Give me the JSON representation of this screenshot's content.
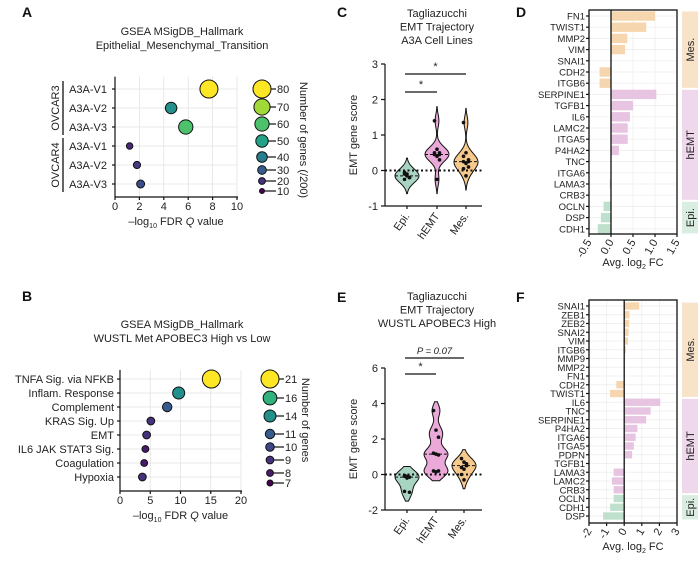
{
  "chart_data": [
    {
      "panel": "A",
      "type": "scatter",
      "title": [
        "GSEA MSigDB_Hallmark",
        "Epithelial_Mesenchymal_Transition"
      ],
      "xlabel": [
        "–log",
        "10",
        " FDR ",
        "Q",
        " value"
      ],
      "xlim": [
        0,
        10
      ],
      "xticks": [
        "0",
        "2",
        "4",
        "6",
        "8",
        "10"
      ],
      "grid": true,
      "groups": [
        {
          "name": "OVCAR3",
          "rows": [
            0,
            1,
            2
          ]
        },
        {
          "name": "OVCAR4",
          "rows": [
            3,
            4,
            5
          ]
        }
      ],
      "rows": [
        {
          "label": "A3A-V1",
          "color": "#5aa95a",
          "x": 7.7,
          "n": 80
        },
        {
          "label": "A3A-V2",
          "color": "#3d4f9b",
          "x": 4.6,
          "n": 45
        },
        {
          "label": "A3A-V3",
          "color": "#7b4a9e",
          "x": 5.8,
          "n": 60
        },
        {
          "label": "A3A-V1",
          "color": "#5aa95a",
          "x": 1.2,
          "n": 18
        },
        {
          "label": "A3A-V2",
          "color": "#3d4f9b",
          "x": 1.8,
          "n": 22
        },
        {
          "label": "A3A-V3",
          "color": "#7b4a9e",
          "x": 2.1,
          "n": 26
        }
      ],
      "legend": {
        "title": "Number of genes (/200)",
        "values": [
          "80",
          "70",
          "60",
          "50",
          "40",
          "30",
          "20",
          "10"
        ],
        "placement": "right"
      }
    },
    {
      "panel": "B",
      "type": "scatter",
      "title": [
        "GSEA MSigDB_Hallmark",
        "WUSTL Met APOBEC3 High vs Low"
      ],
      "xlabel": [
        "–log",
        "10",
        " FDR ",
        "Q",
        " value"
      ],
      "xlim": [
        0,
        20
      ],
      "xticks": [
        "0",
        "5",
        "10",
        "15",
        "20"
      ],
      "grid": true,
      "rows": [
        {
          "label": "TNFA Sig. via NFKB",
          "x": 15.1,
          "n": 21
        },
        {
          "label": "Inflam. Response",
          "x": 9.7,
          "n": 14
        },
        {
          "label": "Complement",
          "x": 7.8,
          "n": 11
        },
        {
          "label": "KRAS Sig. Up",
          "x": 5.1,
          "n": 9
        },
        {
          "label": "EMT",
          "x": 4.4,
          "n": 9
        },
        {
          "label": "IL6 JAK STAT3 Sig.",
          "x": 4.2,
          "n": 8
        },
        {
          "label": "Coagulation",
          "x": 4.0,
          "n": 8
        },
        {
          "label": "Hypoxia",
          "x": 3.7,
          "n": 9
        }
      ],
      "legend": {
        "title": "Number of genes",
        "values": [
          "21",
          "16",
          "14",
          "11",
          "10",
          "9",
          "8",
          "7"
        ],
        "placement": "right"
      }
    },
    {
      "panel": "C",
      "type": "violin",
      "title": [
        "Tagliazucchi",
        "EMT Trajectory",
        "A3A Cell Lines"
      ],
      "ylabel": "EMT gene score",
      "ylim": [
        -1,
        3
      ],
      "yticks": [
        "-1",
        "0",
        "1",
        "2",
        "3"
      ],
      "categories": [
        {
          "name": "Epi.",
          "color": "#a8d5c2",
          "points": [
            -0.1,
            -0.15,
            -0.2,
            -0.25,
            -0.1,
            -0.2,
            -0.05
          ]
        },
        {
          "name": "hEMT",
          "color": "#eaa9d9",
          "points": [
            1.4,
            0.6,
            0.5,
            0.45,
            0.4,
            0.45,
            0.5,
            -0.25,
            0.3
          ]
        },
        {
          "name": "Mes.",
          "color": "#f6c98c",
          "points": [
            1.35,
            0.5,
            0.3,
            0.25,
            0.2,
            0.1,
            0.05,
            -0.15,
            0.25,
            0.4
          ]
        }
      ],
      "reference_line": 0,
      "significance": [
        {
          "from": 0,
          "to": 1,
          "label": "*"
        },
        {
          "from": 0,
          "to": 2,
          "label": "*"
        }
      ]
    },
    {
      "panel": "D",
      "type": "bar",
      "xlabel": [
        "Avg. log",
        "2",
        " FC"
      ],
      "xlim": [
        -0.5,
        1.5
      ],
      "xticks": [
        "-0.5",
        "0.0",
        "0.5",
        "1.0",
        "1.5"
      ],
      "groups": [
        {
          "name": "Mes.",
          "rows": 7,
          "bar": "#f5d6ae",
          "strip": "#f8e3c9"
        },
        {
          "name": "hEMT",
          "rows": 10,
          "bar": "#e7c4e1",
          "strip": "#efd8ec"
        },
        {
          "name": "Epi.",
          "rows": 3,
          "bar": "#bfe0cc",
          "strip": "#d9ede1"
        }
      ],
      "genes": [
        "FN1",
        "TWIST1",
        "MMP2",
        "VIM",
        "SNAI1",
        "CDH2",
        "ITGB6",
        "SERPINE1",
        "TGFB1",
        "IL6",
        "LAMC2",
        "ITGA5",
        "P4HA2",
        "TNC",
        "ITGA6",
        "LAMA3",
        "CRB3",
        "OCLN",
        "DSP",
        "CDH1"
      ],
      "values": [
        1.0,
        0.8,
        0.37,
        0.32,
        0,
        -0.26,
        -0.26,
        1.03,
        0.5,
        0.43,
        0.38,
        0.38,
        0.18,
        0,
        0,
        -0.03,
        0,
        -0.17,
        -0.23,
        -0.3
      ]
    },
    {
      "panel": "E",
      "type": "violin",
      "title": [
        "Tagliazucchi",
        "EMT Trajectory",
        "WUSTL APOBEC3 High"
      ],
      "ylabel": "EMT gene score",
      "ylim": [
        -2,
        6
      ],
      "yticks": [
        "-2",
        "0",
        "2",
        "4",
        "6"
      ],
      "categories": [
        {
          "name": "Epi.",
          "color": "#a8d5c2",
          "points": [
            -0.1,
            -0.2,
            -0.15,
            -0.05,
            -0.1,
            -1.0,
            -0.95
          ]
        },
        {
          "name": "hEMT",
          "color": "#eaa9d9",
          "points": [
            3.6,
            2.5,
            2.1,
            1.2,
            1.15,
            1.1,
            0.2,
            0.15,
            0.2
          ]
        },
        {
          "name": "Mes.",
          "color": "#f6c98c",
          "points": [
            0.9,
            0.7,
            0.5,
            0.4,
            0.3,
            0.5,
            0.0,
            -0.3,
            0.6
          ]
        }
      ],
      "reference_line": 0,
      "significance": [
        {
          "from": 0,
          "to": 1,
          "label": "*"
        },
        {
          "from": 0,
          "to": 2,
          "label": "P = 0.07"
        }
      ]
    },
    {
      "panel": "F",
      "type": "bar",
      "xlabel": [
        "Avg. log",
        "2",
        " FC"
      ],
      "xlim": [
        -2,
        3
      ],
      "xticks": [
        "-2",
        "-1",
        "0",
        "1",
        "2",
        "3"
      ],
      "groups": [
        {
          "name": "Mes.",
          "rows": 11,
          "bar": "#f5d6ae",
          "strip": "#f8e3c9"
        },
        {
          "name": "hEMT",
          "rows": 11,
          "bar": "#e7c4e1",
          "strip": "#efd8ec"
        },
        {
          "name": "Epi.",
          "rows": 3,
          "bar": "#bfe0cc",
          "strip": "#d9ede1"
        }
      ],
      "genes": [
        "SNAI1",
        "ZEB1",
        "ZEB2",
        "SNAI2",
        "VIM",
        "ITGB6",
        "MMP9",
        "MMP2",
        "FN1",
        "CDH2",
        "TWIST1",
        "IL6",
        "TNC",
        "SERPINE1",
        "P4HA2",
        "ITGA6",
        "ITGA5",
        "PDPN",
        "TGFB1",
        "LAMA3",
        "LAMC2",
        "CRB3",
        "OCLN",
        "CDH1",
        "DSP"
      ],
      "values": [
        0.85,
        0.3,
        0.28,
        0.25,
        0.22,
        0.1,
        0,
        0,
        0,
        -0.45,
        -0.8,
        2.05,
        1.5,
        1.25,
        0.75,
        0.65,
        0.55,
        0.45,
        0,
        -0.6,
        -0.7,
        -0.6,
        -0.6,
        -0.8,
        -1.2
      ]
    }
  ]
}
